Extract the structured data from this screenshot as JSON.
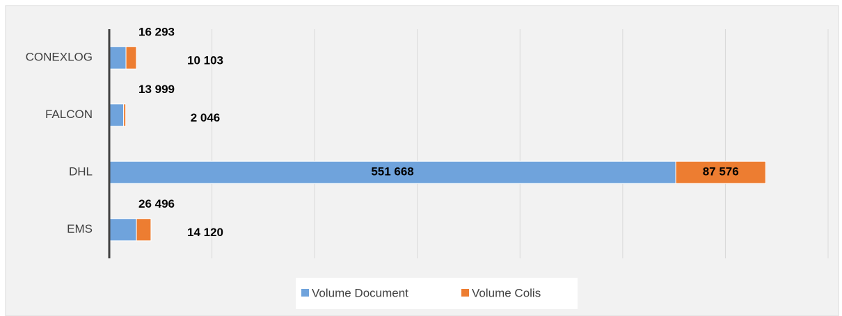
{
  "chart_data": {
    "type": "stacked_barh",
    "categories": [
      "CONEXLOG",
      "FALCON",
      "DHL",
      "EMS"
    ],
    "series": [
      {
        "name": "Volume Document",
        "color": "#6fa3dc",
        "values": [
          16293,
          13999,
          551668,
          26496
        ],
        "value_labels": [
          "16 293",
          "13 999",
          "551 668",
          "26 496"
        ]
      },
      {
        "name": "Volume Colis",
        "color": "#ed7d31",
        "values": [
          10103,
          2046,
          87576,
          14120
        ],
        "value_labels": [
          "10 103",
          "2 046",
          "87 576",
          "14 120"
        ]
      }
    ],
    "xlim": [
      0,
      700000
    ],
    "xticks": [
      0,
      100000,
      200000,
      300000,
      400000,
      500000,
      600000,
      700000
    ],
    "grid": true,
    "legend": "bottom"
  }
}
